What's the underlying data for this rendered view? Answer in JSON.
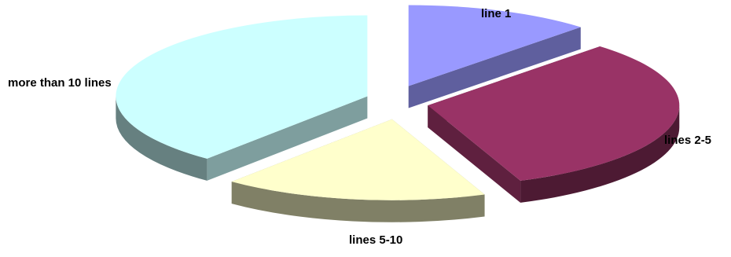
{
  "chart_data": {
    "type": "pie",
    "title": "",
    "categories": [
      "line 1",
      "lines 2-5",
      "lines 5-10",
      "more than 10 lines"
    ],
    "values": [
      12,
      32,
      17,
      39
    ],
    "colors": {
      "line 1": "#9999ff",
      "lines 2-5": "#993366",
      "lines 5-10": "#ffffcc",
      "more than 10 lines": "#ccffff"
    },
    "style": "3d-exploded"
  }
}
